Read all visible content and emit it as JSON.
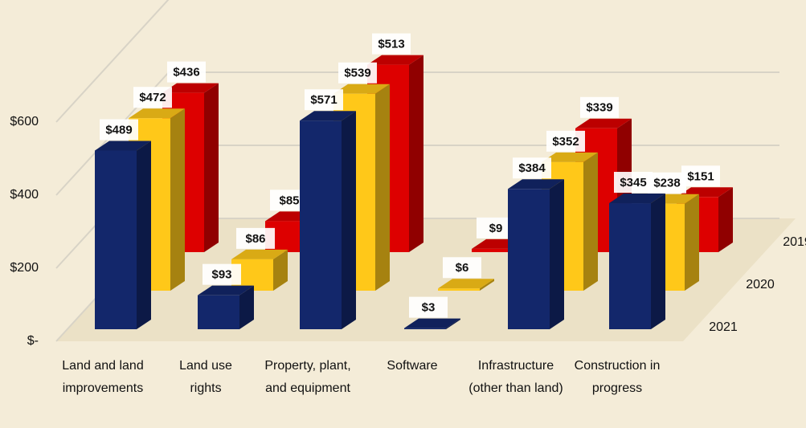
{
  "chart_data": {
    "type": "bar3d",
    "categories": [
      "Land and land improvements",
      "Land use rights",
      "Property, plant, and equipment",
      "Software",
      "Infrastructure (other than land)",
      "Construction in progress"
    ],
    "series": [
      {
        "name": "2021",
        "color": "#13276b",
        "values": [
          489,
          93,
          571,
          3,
          384,
          345
        ],
        "value_labels": [
          "$489",
          "$93",
          "$571",
          "$3",
          "$384",
          "$345"
        ]
      },
      {
        "name": "2020",
        "color": "#ffc819",
        "values": [
          472,
          86,
          539,
          6,
          352,
          238
        ],
        "value_labels": [
          "$472",
          "$86",
          "$539",
          "$6",
          "$352",
          "$238"
        ]
      },
      {
        "name": "2019",
        "color": "#dd0000",
        "values": [
          436,
          85,
          513,
          9,
          339,
          151
        ],
        "value_labels": [
          "$436",
          "$85",
          "$513",
          "$9",
          "$339",
          "$151"
        ]
      }
    ],
    "ylim": [
      0,
      800
    ],
    "yticks": [
      {
        "value": 0,
        "label": "$-"
      },
      {
        "value": 200,
        "label": "$200"
      },
      {
        "value": 400,
        "label": "$400"
      },
      {
        "value": 600,
        "label": "$600"
      }
    ],
    "grid": true
  }
}
